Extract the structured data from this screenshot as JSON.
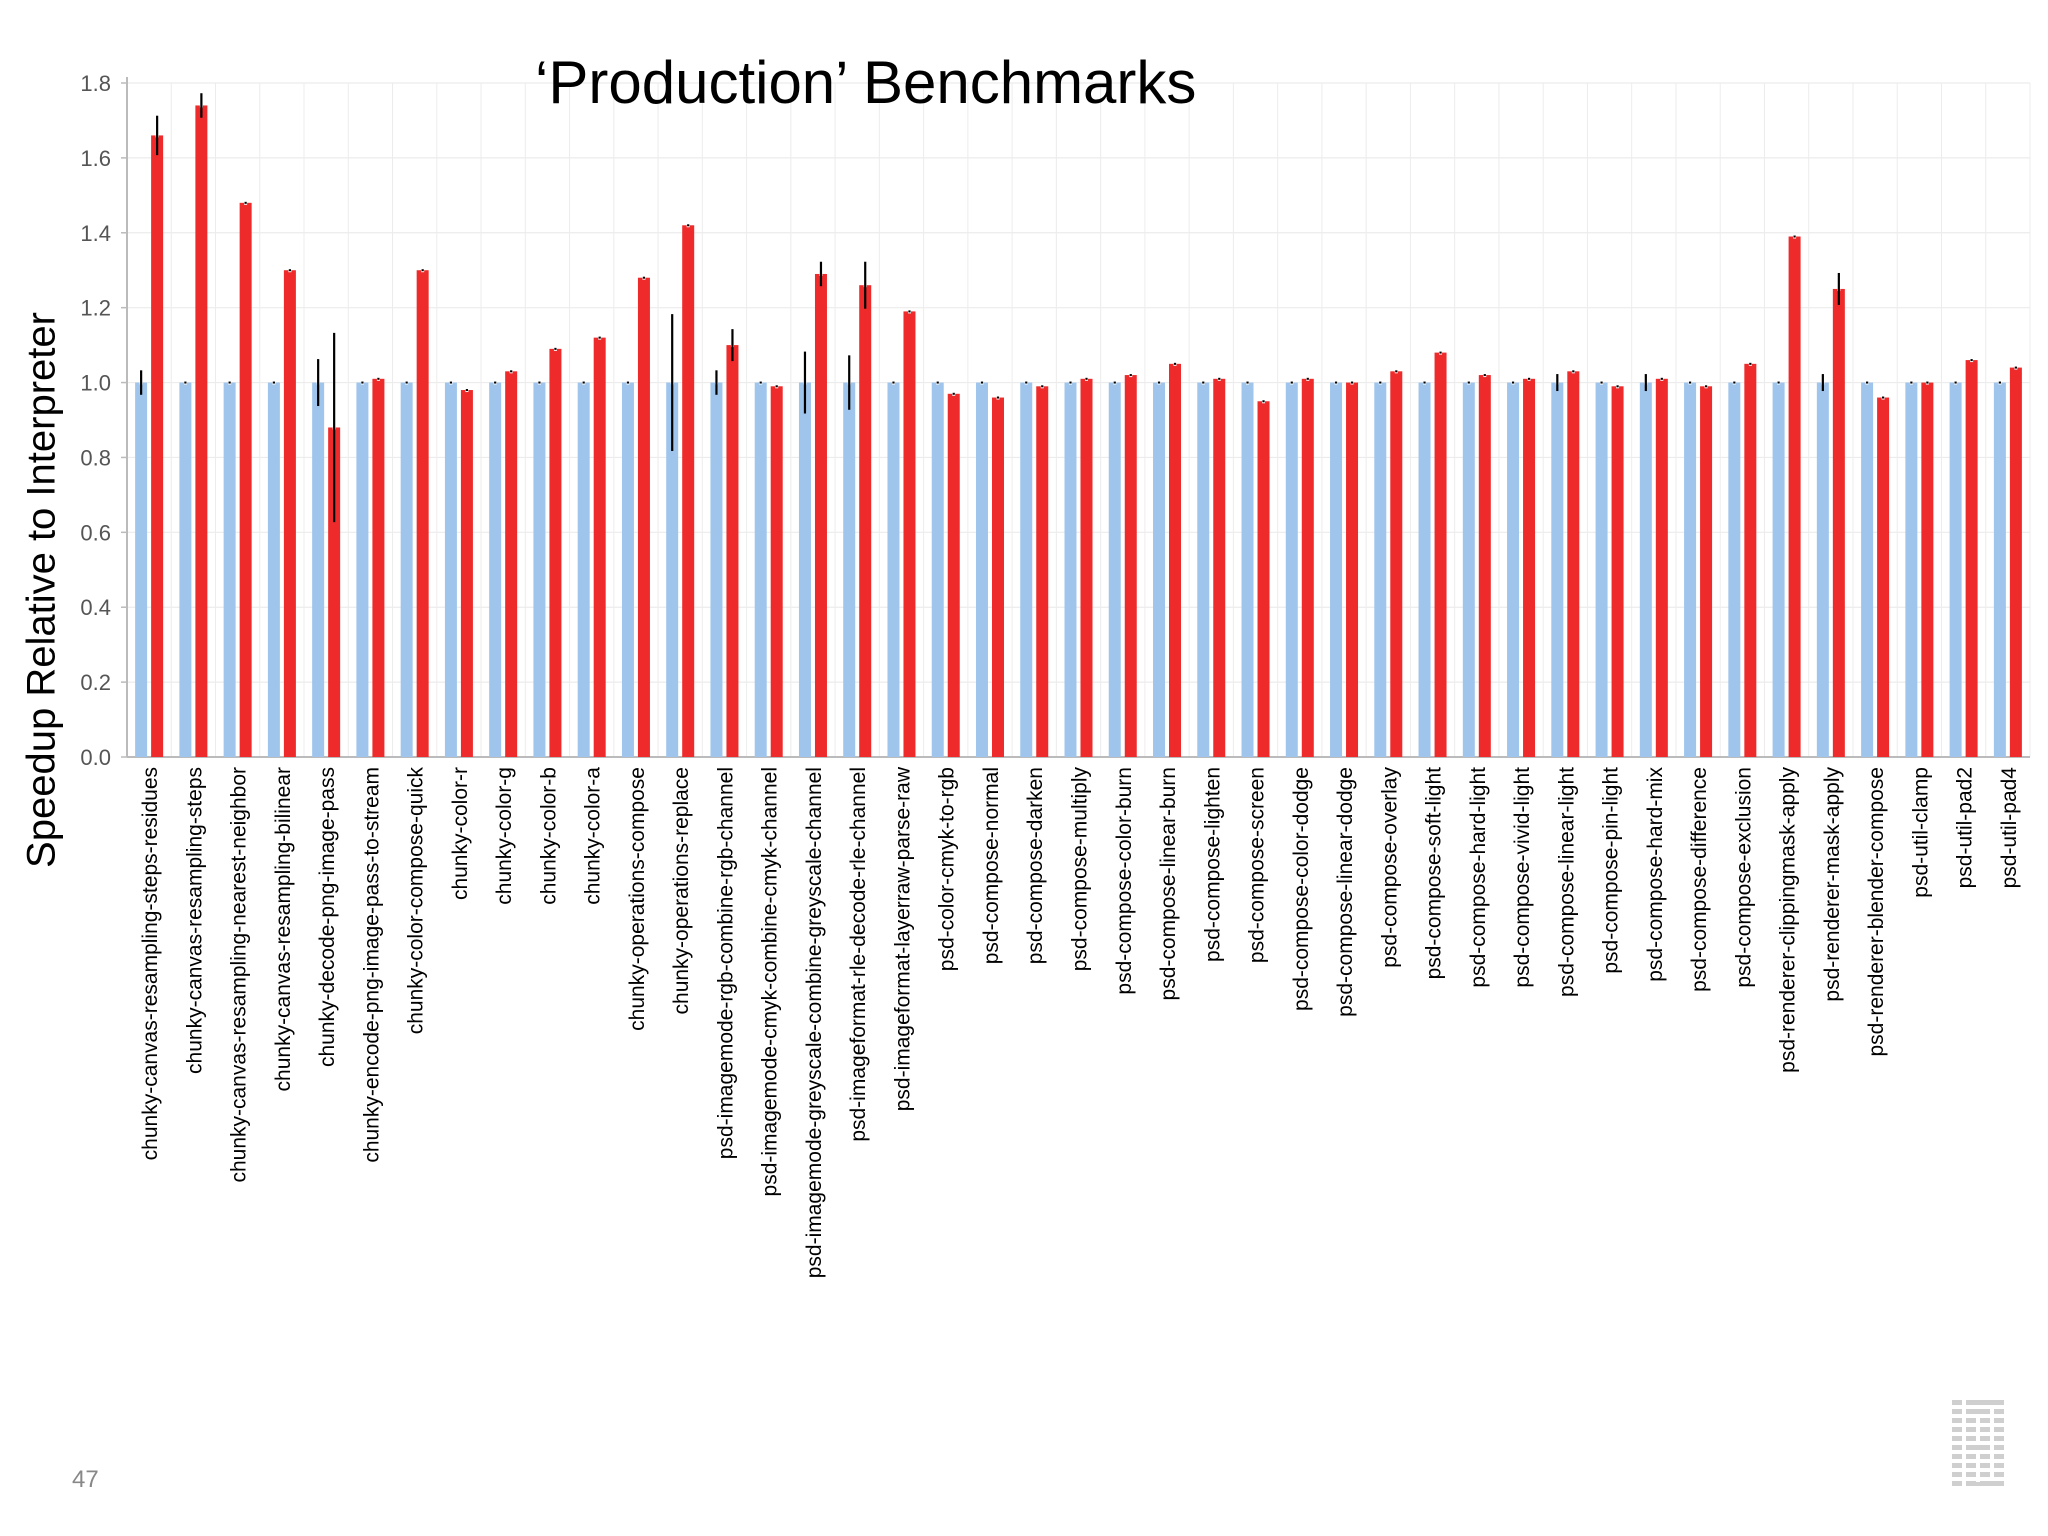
{
  "title": "‘Production’ Benchmarks",
  "page_number": "47",
  "colors": {
    "baseline": "#9fc5ec",
    "jit": "#ee2a2a",
    "grid": "#ececec",
    "errorbar": "#000000"
  },
  "logo_icon": "ibm-logo-icon",
  "chart_data": {
    "type": "bar",
    "title": "‘Production’ Benchmarks",
    "xlabel": "",
    "ylabel": "Speedup Relative to Interpreter",
    "ylim": [
      0,
      1.8
    ],
    "yticks": [
      "0.0",
      "0.2",
      "0.4",
      "0.6",
      "0.8",
      "1.0",
      "1.2",
      "1.4",
      "1.6",
      "1.8"
    ],
    "grid": true,
    "legend": "none",
    "categories": [
      "chunky-canvas-resampling-steps-residues",
      "chunky-canvas-resampling-steps",
      "chunky-canvas-resampling-nearest-neighbor",
      "chunky-canvas-resampling-bilinear",
      "chunky-decode-png-image-pass",
      "chunky-encode-png-image-pass-to-stream",
      "chunky-color-compose-quick",
      "chunky-color-r",
      "chunky-color-g",
      "chunky-color-b",
      "chunky-color-a",
      "chunky-operations-compose",
      "chunky-operations-replace",
      "psd-imagemode-rgb-combine-rgb-channel",
      "psd-imagemode-cmyk-combine-cmyk-channel",
      "psd-imagemode-greyscale-combine-greyscale-channel",
      "psd-imageformat-rle-decode-rle-channel",
      "psd-imageformat-layerraw-parse-raw",
      "psd-color-cmyk-to-rgb",
      "psd-compose-normal",
      "psd-compose-darken",
      "psd-compose-multiply",
      "psd-compose-color-burn",
      "psd-compose-linear-burn",
      "psd-compose-lighten",
      "psd-compose-screen",
      "psd-compose-color-dodge",
      "psd-compose-linear-dodge",
      "psd-compose-overlay",
      "psd-compose-soft-light",
      "psd-compose-hard-light",
      "psd-compose-vivid-light",
      "psd-compose-linear-light",
      "psd-compose-pin-light",
      "psd-compose-hard-mix",
      "psd-compose-difference",
      "psd-compose-exclusion",
      "psd-renderer-clippingmask-apply",
      "psd-renderer-mask-apply",
      "psd-renderer-blender-compose",
      "psd-util-clamp",
      "psd-util-pad2",
      "psd-util-pad4"
    ],
    "series": [
      {
        "values": [
          1.0,
          1.0,
          1.0,
          1.0,
          1.0,
          1.0,
          1.0,
          1.0,
          1.0,
          1.0,
          1.0,
          1.0,
          1.0,
          1.0,
          1.0,
          1.0,
          1.0,
          1.0,
          1.0,
          1.0,
          1.0,
          1.0,
          1.0,
          1.0,
          1.0,
          1.0,
          1.0,
          1.0,
          1.0,
          1.0,
          1.0,
          1.0,
          1.0,
          1.0,
          1.0,
          1.0,
          1.0,
          1.0,
          1.0,
          1.0,
          1.0,
          1.0,
          1.0
        ],
        "error": [
          0.03,
          0.0,
          0.0,
          0.0,
          0.06,
          0.0,
          0.0,
          0.0,
          0.0,
          0.0,
          0.0,
          0.0,
          0.18,
          0.03,
          0.0,
          0.08,
          0.07,
          0.0,
          0.0,
          0.0,
          0.0,
          0.0,
          0.0,
          0.0,
          0.0,
          0.0,
          0.0,
          0.0,
          0.0,
          0.0,
          0.0,
          0.0,
          0.02,
          0.0,
          0.02,
          0.0,
          0.0,
          0.0,
          0.02,
          0.0,
          0.0,
          0.0,
          0.0
        ]
      },
      {
        "values": [
          1.66,
          1.74,
          1.48,
          1.3,
          0.88,
          1.01,
          1.3,
          0.98,
          1.03,
          1.09,
          1.12,
          1.28,
          1.42,
          1.1,
          0.99,
          1.29,
          1.26,
          1.19,
          0.97,
          0.96,
          0.99,
          1.01,
          1.02,
          1.05,
          1.01,
          0.95,
          1.01,
          1.0,
          1.03,
          1.08,
          1.02,
          1.01,
          1.03,
          0.99,
          1.01,
          0.99,
          1.05,
          1.39,
          1.25,
          0.96,
          1.0,
          1.06,
          1.04
        ],
        "error": [
          0.05,
          0.03,
          0.0,
          0.0,
          0.25,
          0.0,
          0.0,
          0.0,
          0.0,
          0.0,
          0.0,
          0.0,
          0.0,
          0.04,
          0.0,
          0.03,
          0.06,
          0.0,
          0.0,
          0.0,
          0.0,
          0.0,
          0.0,
          0.0,
          0.0,
          0.0,
          0.0,
          0.0,
          0.0,
          0.0,
          0.0,
          0.0,
          0.0,
          0.0,
          0.0,
          0.0,
          0.0,
          0.0,
          0.04,
          0.0,
          0.0,
          0.0,
          0.0
        ]
      }
    ]
  }
}
